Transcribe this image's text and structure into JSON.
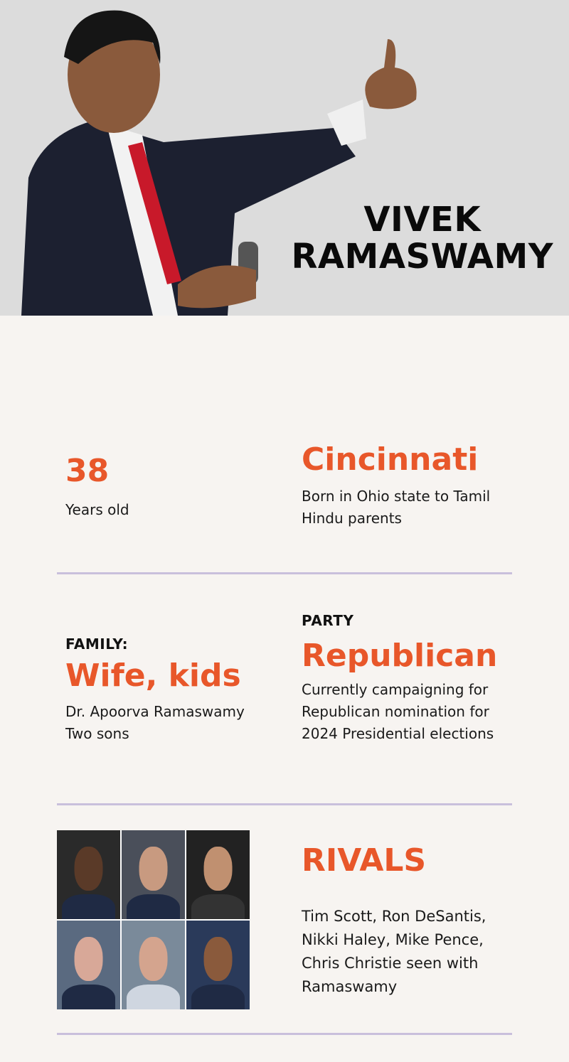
{
  "header": {
    "name_line1": "VIVEK",
    "name_line2": "RAMASWAMY"
  },
  "colors": {
    "accent": "#e8572a",
    "divider": "#c9bfdc",
    "background": "#f7f4f1",
    "header_bg": "#dcdcdc"
  },
  "facts": {
    "age": {
      "value": "38",
      "caption": "Years old"
    },
    "birthplace": {
      "value": "Cincinnati",
      "caption": "Born in Ohio state to Tamil Hindu parents"
    },
    "family": {
      "label": "FAMILY:",
      "value": "Wife, kids",
      "caption_line1": "Dr. Apoorva Ramaswamy",
      "caption_line2": "Two sons"
    },
    "party": {
      "label": "PARTY",
      "value": "Republican",
      "caption": "Currently campaigning for Republican nomination for 2024 Presidential elections"
    },
    "rivals": {
      "value": "RIVALS",
      "caption": "Tim Scott, Ron DeSantis, Nikki Haley, Mike Pence, Chris Christie seen with Ramaswamy"
    }
  }
}
